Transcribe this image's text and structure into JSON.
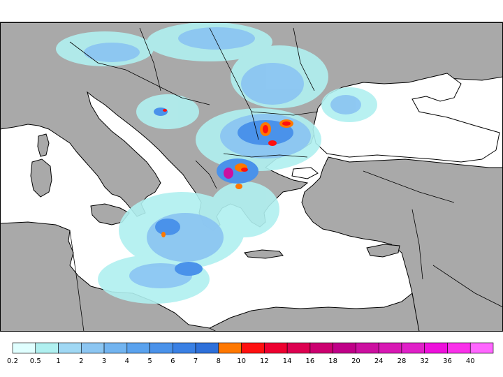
{
  "map": {
    "region": "Eastern Mediterranean and Black Sea",
    "land_color": "#a9a9a9",
    "sea_color": "#ffffff",
    "border_color": "#000000"
  },
  "legend": {
    "bins": [
      {
        "label": "0.2",
        "color": "#e0ffff"
      },
      {
        "label": "0.5",
        "color": "#b0f0f0"
      },
      {
        "label": "1",
        "color": "#a0d8f4"
      },
      {
        "label": "2",
        "color": "#8cc6f2"
      },
      {
        "label": "3",
        "color": "#72b4f0"
      },
      {
        "label": "4",
        "color": "#5aa2ee"
      },
      {
        "label": "5",
        "color": "#4a92ea"
      },
      {
        "label": "6",
        "color": "#3a80e4"
      },
      {
        "label": "7",
        "color": "#2e70da"
      },
      {
        "label": "8",
        "color": "#ff7800"
      },
      {
        "label": "10",
        "color": "#ff1010"
      },
      {
        "label": "12",
        "color": "#ee0030"
      },
      {
        "label": "14",
        "color": "#dd0050"
      },
      {
        "label": "16",
        "color": "#cc0070"
      },
      {
        "label": "18",
        "color": "#c00088"
      },
      {
        "label": "20",
        "color": "#cc10a0"
      },
      {
        "label": "24",
        "color": "#d818b4"
      },
      {
        "label": "28",
        "color": "#e020c8"
      },
      {
        "label": "32",
        "color": "#ee10dc"
      },
      {
        "label": "36",
        "color": "#fa30ea"
      },
      {
        "label": "40",
        "color": "#ff66ff"
      }
    ]
  }
}
